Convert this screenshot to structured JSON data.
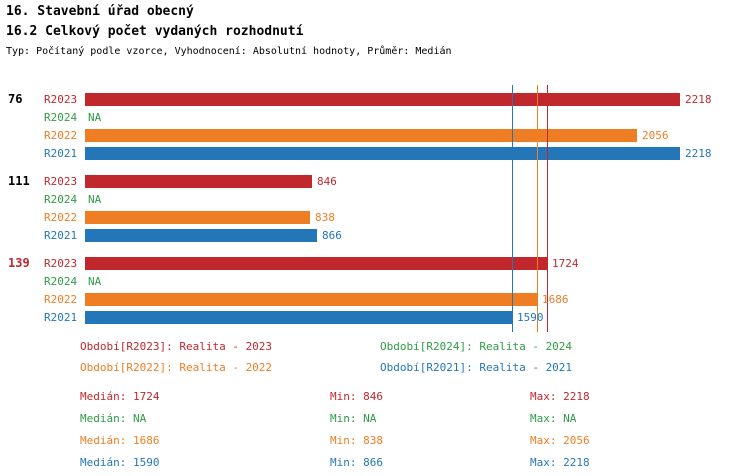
{
  "header": {
    "title": "16. Stavební úřad obecný",
    "subtitle": "16.2 Celkový počet vydaných rozhodnutí",
    "meta": "Typ: Počítaný podle vzorce, Vyhodnocení: Absolutní hodnoty, Průměr: Medián"
  },
  "colors": {
    "R2023": "#c0282d",
    "R2024": "#2e9b44",
    "R2022": "#ee7d23",
    "R2021": "#2377b8",
    "highlight": "#c0282d",
    "text": "#000000"
  },
  "chart_data": {
    "type": "bar",
    "orientation": "horizontal",
    "na_label": "NA",
    "xlim": [
      0,
      2218
    ],
    "series_order": [
      "R2023",
      "R2024",
      "R2022",
      "R2021"
    ],
    "groups": [
      {
        "label": "76",
        "highlight": false,
        "bars": [
          {
            "series": "R2023",
            "value": 2218
          },
          {
            "series": "R2024",
            "value": null
          },
          {
            "series": "R2022",
            "value": 2056
          },
          {
            "series": "R2021",
            "value": 2218
          }
        ]
      },
      {
        "label": "111",
        "highlight": false,
        "bars": [
          {
            "series": "R2023",
            "value": 846
          },
          {
            "series": "R2024",
            "value": null
          },
          {
            "series": "R2022",
            "value": 838
          },
          {
            "series": "R2021",
            "value": 866
          }
        ]
      },
      {
        "label": "139",
        "highlight": true,
        "bars": [
          {
            "series": "R2023",
            "value": 1724
          },
          {
            "series": "R2024",
            "value": null
          },
          {
            "series": "R2022",
            "value": 1686
          },
          {
            "series": "R2021",
            "value": 1590
          }
        ]
      }
    ],
    "median_lines": [
      {
        "series": "R2021",
        "value": 1590
      },
      {
        "series": "R2022",
        "value": 1686
      },
      {
        "series": "R2023",
        "value": 1724
      }
    ]
  },
  "legend": [
    {
      "series": "R2023",
      "label": "Období[R2023]: Realita - 2023"
    },
    {
      "series": "R2024",
      "label": "Období[R2024]: Realita - 2024"
    },
    {
      "series": "R2022",
      "label": "Období[R2022]: Realita - 2022"
    },
    {
      "series": "R2021",
      "label": "Období[R2021]: Realita - 2021"
    }
  ],
  "stats_labels": {
    "median": "Medián",
    "min": "Min",
    "max": "Max"
  },
  "stats": [
    {
      "series": "R2023",
      "median": "1724",
      "min": "846",
      "max": "2218"
    },
    {
      "series": "R2024",
      "median": "NA",
      "min": "NA",
      "max": "NA"
    },
    {
      "series": "R2022",
      "median": "1686",
      "min": "838",
      "max": "2056"
    },
    {
      "series": "R2021",
      "median": "1590",
      "min": "866",
      "max": "2218"
    }
  ]
}
